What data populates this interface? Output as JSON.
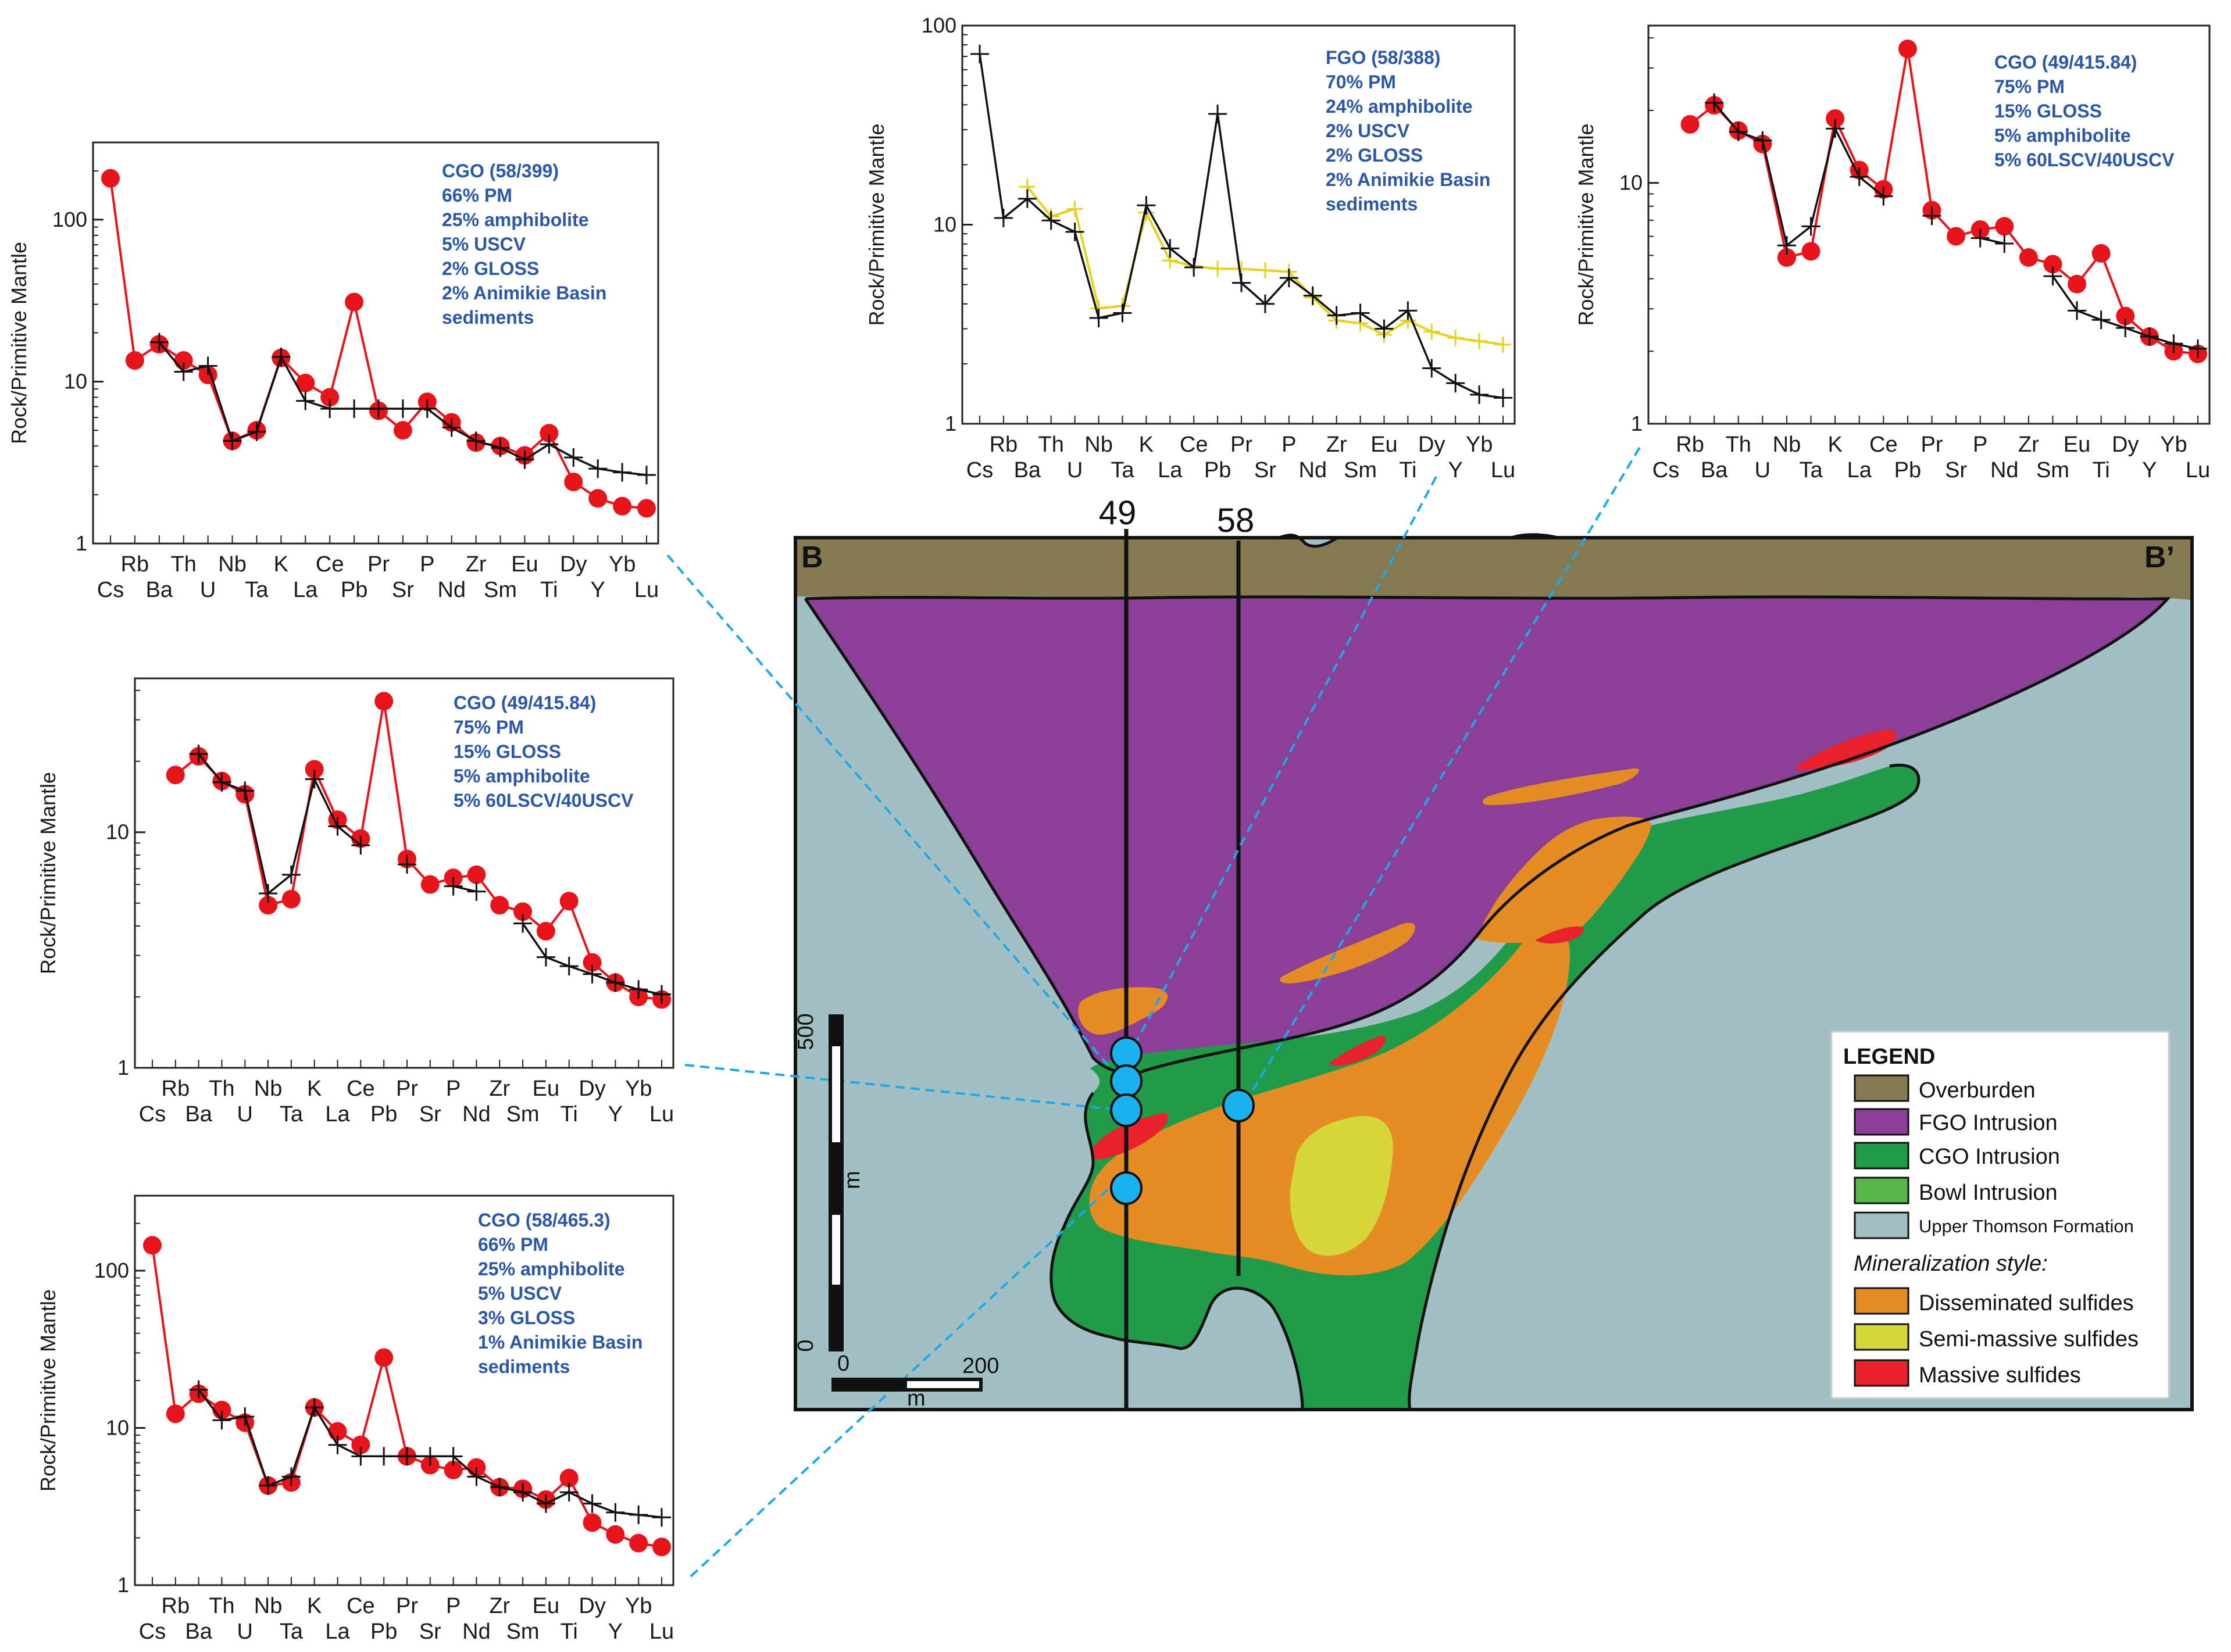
{
  "colors": {
    "model": "#e8141c",
    "observed": "#111111",
    "fgo_alt": "#e6d21e",
    "annotation": "#2b57a8",
    "connector": "#1fa8e8",
    "overburden": "#857a52",
    "fgo": "#8b3f97",
    "cgo": "#1f9b4a",
    "bowl": "#55b848",
    "thomson": "#a2bfc4",
    "disseminated": "#e58c24",
    "semimassive": "#d7d73b",
    "massive": "#e8212a",
    "sample": "#1bb0ee"
  },
  "elements": [
    "Cs",
    "Rb",
    "Ba",
    "Th",
    "U",
    "Nb",
    "Ta",
    "K",
    "La",
    "Ce",
    "Pb",
    "Pr",
    "Sr",
    "P",
    "Nd",
    "Zr",
    "Sm",
    "Eu",
    "Ti",
    "Dy",
    "Y",
    "Yb",
    "Lu"
  ],
  "axis_label": "Rock/Primitive Mantle",
  "charts": [
    {
      "id": "cgo-58-399",
      "y_ticks": [
        "1",
        "10",
        "100"
      ],
      "ylim": [
        1,
        300
      ],
      "annotation": [
        "CGO (58/399)",
        "66% PM",
        "25% amphibolite",
        "5% USCV",
        "2% GLOSS",
        "2% Animikie Basin",
        "sediments"
      ]
    },
    {
      "id": "fgo-58-388",
      "y_ticks": [
        "1",
        "10",
        "100"
      ],
      "ylim": [
        1,
        100
      ],
      "annotation": [
        "FGO (58/388)",
        "70% PM",
        "24% amphibolite",
        "2% USCV",
        "2% GLOSS",
        "2% Animikie Basin",
        "sediments"
      ]
    },
    {
      "id": "cgo-49-41584-top",
      "y_ticks": [
        "1",
        "10"
      ],
      "ylim": [
        1,
        45
      ],
      "annotation": [
        "CGO (49/415.84)",
        "75% PM",
        "15% GLOSS",
        "5% amphibolite",
        "5% 60LSCV/40USCV"
      ]
    },
    {
      "id": "cgo-49-41584-mid",
      "y_ticks": [
        "1",
        "10"
      ],
      "ylim": [
        1,
        45
      ],
      "annotation": [
        "CGO (49/415.84)",
        "75% PM",
        "15% GLOSS",
        "5% amphibolite",
        "5% 60LSCV/40USCV"
      ]
    },
    {
      "id": "cgo-58-4653",
      "y_ticks": [
        "1",
        "10",
        "100"
      ],
      "ylim": [
        1,
        300
      ],
      "annotation": [
        "CGO (58/465.3)",
        "66% PM",
        "25% amphibolite",
        "5% USCV",
        "3% GLOSS",
        "1% Animikie Basin",
        "sediments"
      ]
    }
  ],
  "chart_data": [
    {
      "type": "line",
      "title": "CGO (58/399)",
      "ylabel": "Rock/Primitive Mantle",
      "yscale": "log",
      "ylim": [
        1,
        300
      ],
      "x": [
        "Cs",
        "Rb",
        "Ba",
        "Th",
        "U",
        "Nb",
        "Ta",
        "K",
        "La",
        "Ce",
        "Pb",
        "Pr",
        "Sr",
        "P",
        "Nd",
        "Zr",
        "Sm",
        "Eu",
        "Ti",
        "Dy",
        "Y",
        "Yb",
        "Lu"
      ],
      "series": [
        {
          "name": "model",
          "values": [
            180,
            13.5,
            17,
            13.5,
            11,
            4.3,
            5,
            14,
            9.8,
            8,
            31,
            6.6,
            5,
            7.5,
            5.6,
            4.2,
            4,
            3.5,
            4.8,
            2.4,
            1.9,
            1.7,
            1.65
          ]
        },
        {
          "name": "observed",
          "values": [
            null,
            null,
            17.5,
            11.5,
            12.5,
            4.3,
            4.9,
            14.2,
            7.6,
            6.8,
            6.8,
            6.8,
            6.8,
            6.8,
            5.2,
            4.3,
            3.9,
            3.3,
            4.1,
            3.4,
            2.9,
            2.75,
            2.65
          ]
        }
      ]
    },
    {
      "type": "line",
      "title": "FGO (58/388)",
      "ylabel": "Rock/Primitive Mantle",
      "yscale": "log",
      "ylim": [
        1,
        100
      ],
      "x": [
        "Cs",
        "Rb",
        "Ba",
        "Th",
        "U",
        "Nb",
        "Ta",
        "K",
        "La",
        "Ce",
        "Pb",
        "Pr",
        "Sr",
        "P",
        "Nd",
        "Zr",
        "Sm",
        "Eu",
        "Ti",
        "Dy",
        "Y",
        "Yb",
        "Lu"
      ],
      "series": [
        {
          "name": "model",
          "values": [
            null,
            null,
            15.5,
            11,
            12,
            3.8,
            3.9,
            11.5,
            6.6,
            6.2,
            6,
            6,
            5.9,
            5.8,
            4.3,
            3.3,
            3.2,
            2.8,
            3.3,
            2.9,
            2.7,
            2.6,
            2.5
          ]
        },
        {
          "name": "observed",
          "values": [
            72,
            10.8,
            13.5,
            10.5,
            9.2,
            3.4,
            3.6,
            12.5,
            7.6,
            6.1,
            36,
            5.1,
            4,
            5.4,
            4.4,
            3.5,
            3.6,
            3,
            3.7,
            1.9,
            1.6,
            1.4,
            1.35
          ]
        }
      ]
    },
    {
      "type": "line",
      "title": "CGO (49/415.84)",
      "ylabel": "Rock/Primitive Mantle",
      "yscale": "log",
      "ylim": [
        1,
        45
      ],
      "x": [
        "Cs",
        "Rb",
        "Ba",
        "Th",
        "U",
        "Nb",
        "Ta",
        "K",
        "La",
        "Ce",
        "Pb",
        "Pr",
        "Sr",
        "P",
        "Nd",
        "Zr",
        "Sm",
        "Eu",
        "Ti",
        "Dy",
        "Y",
        "Yb",
        "Lu"
      ],
      "series": [
        {
          "name": "model",
          "values": [
            null,
            17.5,
            21,
            16.5,
            14.5,
            4.9,
            5.2,
            18.5,
            11.3,
            9.4,
            36,
            7.7,
            6,
            6.4,
            6.6,
            4.9,
            4.6,
            3.8,
            5.1,
            2.8,
            2.3,
            2,
            1.95
          ]
        },
        {
          "name": "observed",
          "values": [
            null,
            null,
            21.5,
            16.3,
            15,
            5.5,
            6.6,
            16.8,
            10.6,
            8.8,
            null,
            7.3,
            null,
            5.9,
            5.6,
            null,
            4.1,
            2.95,
            2.7,
            2.5,
            2.3,
            2.15,
            2.05
          ]
        }
      ]
    },
    {
      "type": "line",
      "title": "CGO (49/415.84)",
      "ylabel": "Rock/Primitive Mantle",
      "yscale": "log",
      "ylim": [
        1,
        45
      ],
      "x": [
        "Cs",
        "Rb",
        "Ba",
        "Th",
        "U",
        "Nb",
        "Ta",
        "K",
        "La",
        "Ce",
        "Pb",
        "Pr",
        "Sr",
        "P",
        "Nd",
        "Zr",
        "Sm",
        "Eu",
        "Ti",
        "Dy",
        "Y",
        "Yb",
        "Lu"
      ],
      "series": [
        {
          "name": "model",
          "values": [
            null,
            17.5,
            21,
            16.5,
            14.5,
            4.9,
            5.2,
            18.5,
            11.3,
            9.4,
            36,
            7.7,
            6,
            6.4,
            6.6,
            4.9,
            4.6,
            3.8,
            5.1,
            2.8,
            2.3,
            2,
            1.95
          ]
        },
        {
          "name": "observed",
          "values": [
            null,
            null,
            21.5,
            16.3,
            15,
            5.5,
            6.6,
            16.8,
            10.6,
            8.8,
            null,
            7.3,
            null,
            5.9,
            5.6,
            null,
            4.1,
            2.95,
            2.7,
            2.5,
            2.3,
            2.15,
            2.05
          ]
        }
      ]
    },
    {
      "type": "line",
      "title": "CGO (58/465.3)",
      "ylabel": "Rock/Primitive Mantle",
      "yscale": "log",
      "ylim": [
        1,
        300
      ],
      "x": [
        "Cs",
        "Rb",
        "Ba",
        "Th",
        "U",
        "Nb",
        "Ta",
        "K",
        "La",
        "Ce",
        "Pb",
        "Pr",
        "Sr",
        "P",
        "Nd",
        "Zr",
        "Sm",
        "Eu",
        "Ti",
        "Dy",
        "Y",
        "Yb",
        "Lu"
      ],
      "series": [
        {
          "name": "model",
          "values": [
            145,
            12.3,
            16.5,
            13,
            10.8,
            4.3,
            4.5,
            13.5,
            9.5,
            7.8,
            28,
            6.6,
            5.8,
            5.4,
            5.6,
            4.2,
            4.1,
            3.5,
            4.8,
            2.5,
            2.1,
            1.85,
            1.75
          ]
        },
        {
          "name": "observed",
          "values": [
            null,
            null,
            17.5,
            11.2,
            11.8,
            4.3,
            4.9,
            13.5,
            7.8,
            6.6,
            6.6,
            6.6,
            6.6,
            6.6,
            4.9,
            4.2,
            3.9,
            3.3,
            3.9,
            3.3,
            2.9,
            2.8,
            2.7
          ]
        }
      ]
    }
  ],
  "section": {
    "left_label": "B",
    "right_label": "B’",
    "drill_holes": [
      "49",
      "58"
    ],
    "scale_vertical_top": "500",
    "scale_vertical_bottom": "0",
    "scale_vertical_unit": "m",
    "scale_horizontal_left": "0",
    "scale_horizontal_right": "200",
    "scale_horizontal_unit": "m"
  },
  "legend": {
    "title": "LEGEND",
    "units": [
      "Overburden",
      "FGO Intrusion",
      "CGO Intrusion",
      "Bowl Intrusion",
      "Upper Thomson Formation"
    ],
    "style_heading": "Mineralization style:",
    "styles": [
      "Disseminated sulfides",
      "Semi-massive sulfides",
      "Massive sulfides"
    ]
  }
}
